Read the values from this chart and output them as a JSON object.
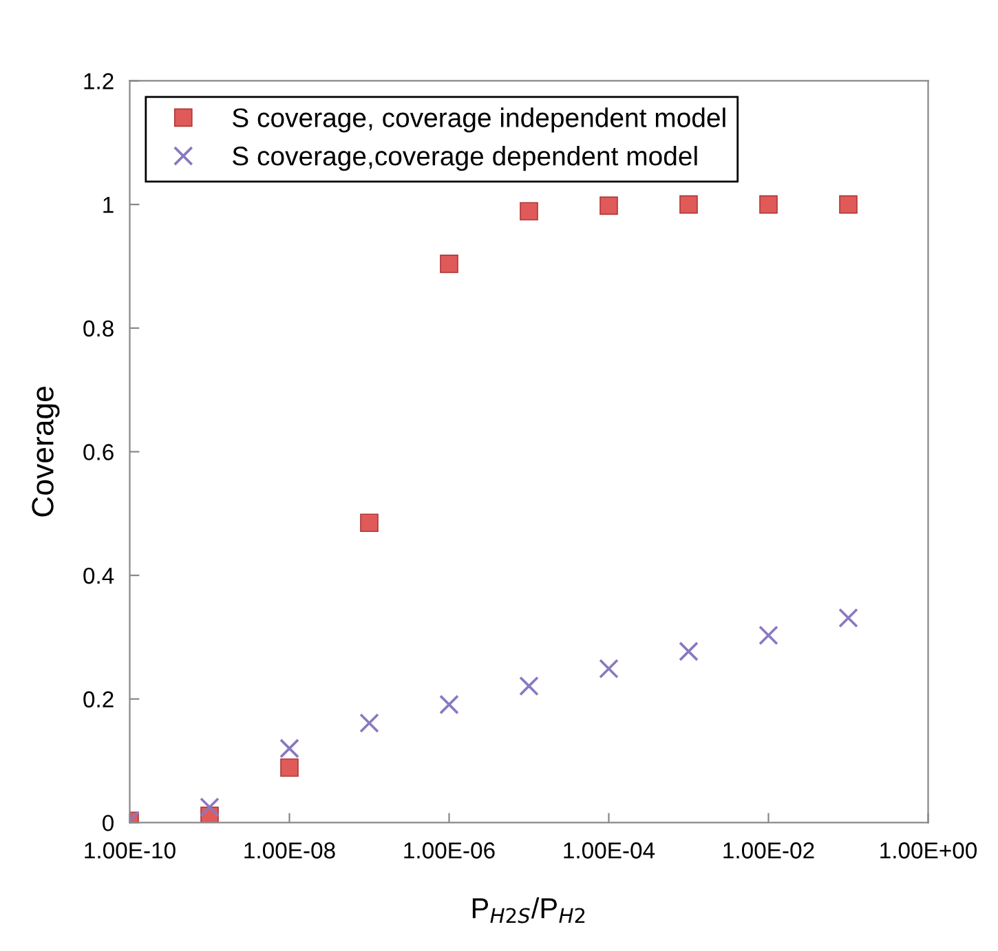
{
  "chart_data": {
    "type": "scatter",
    "xlabel": "P$_{H2S}$/P$_{H2}$",
    "ylabel": "Coverage",
    "log": "x",
    "x": [
      1e-10,
      1e-09,
      1e-08,
      1e-07,
      1e-06,
      1e-05,
      0.0001,
      0.001,
      0.01,
      0.1
    ],
    "series": [
      {
        "name": "S coverage, coverage independent model",
        "color": "#e05a5a",
        "marker": "square",
        "values": [
          0.003,
          0.011,
          0.089,
          0.485,
          0.904,
          0.989,
          0.998,
          1.0,
          1.0,
          1.0
        ]
      },
      {
        "name": "S coverage,coverage dependent model",
        "color": "#8a78c0",
        "marker": "cross",
        "values": [
          0.003,
          0.025,
          0.12,
          0.161,
          0.191,
          0.221,
          0.249,
          0.277,
          0.303,
          0.331
        ]
      }
    ],
    "xlim": [
      1e-10,
      1
    ],
    "xticks": [
      {
        "value": 1e-10,
        "label": "1.00E-10"
      },
      {
        "value": 1e-08,
        "label": "1.00E-08"
      },
      {
        "value": 1e-06,
        "label": "1.00E-06"
      },
      {
        "value": 0.0001,
        "label": "1.00E-04"
      },
      {
        "value": 0.01,
        "label": "1.00E-02"
      },
      {
        "value": 1,
        "label": "1.00E+00"
      }
    ],
    "ylim": [
      0,
      1.2
    ],
    "yticks": [
      0,
      0.2,
      0.4,
      0.6,
      0.8,
      1,
      1.2
    ],
    "grid": false,
    "legend": "top left"
  }
}
